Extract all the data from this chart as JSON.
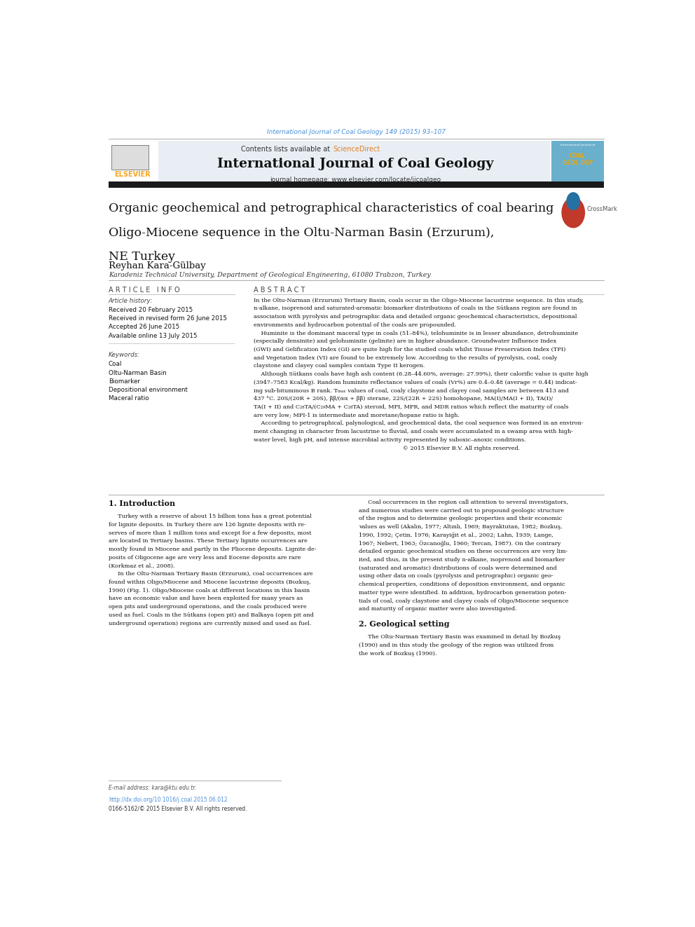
{
  "page_width": 9.92,
  "page_height": 13.23,
  "background_color": "#ffffff",
  "top_citation": "International Journal of Coal Geology 149 (2015) 93–107",
  "top_citation_color": "#4a90d9",
  "header_bg_color": "#e8eef4",
  "journal_title": "International Journal of Coal Geology",
  "journal_homepage": "journal homepage: www.elsevier.com/locate/ijcoalgeo",
  "contents_text": "Contents lists available at ",
  "sciencedirect_text": "ScienceDirect",
  "sciencedirect_color": "#e67e22",
  "elsevier_color": "#f5a623",
  "article_title_line1": "Organic geochemical and petrographical characteristics of coal bearing",
  "article_title_line2": "Oligo-Miocene sequence in the Oltu-Narman Basin (Erzurum),",
  "article_title_line3": "NE Turkey",
  "author": "Reyhan Kara-Gülbay",
  "affiliation": "Karadeniz Technical University, Department of Geological Engineering, 61080 Trabzon, Turkey",
  "article_info_header": "A R T I C L E   I N F O",
  "abstract_header": "A B S T R A C T",
  "article_history_label": "Article history:",
  "received": "Received 20 February 2015",
  "revised": "Received in revised form 26 June 2015",
  "accepted": "Accepted 26 June 2015",
  "available": "Available online 13 July 2015",
  "keywords_label": "Keywords:",
  "keywords": [
    "Coal",
    "Oltu-Narman Basin",
    "Biomarker",
    "Depositional environment",
    "Maceral ratio"
  ],
  "section1_header": "1. Introduction",
  "section2_header": "2. Geological setting",
  "footer_email": "E-mail address: kara@ktu.edu.tr.",
  "footer_doi": "http://dx.doi.org/10.1016/j.coal.2015.06.012",
  "footer_issn": "0166-5162/© 2015 Elsevier B.V. All rights reserved.",
  "thick_bar_color": "#1a1a1a",
  "abstract_lines": [
    "In the Oltu-Narman (Erzurum) Tertiary Basin, coals occur in the Oligo-Miocene lacustrine sequence. In this study,",
    "n-alkane, isoprenoid and saturated-aromatic biomarker distributions of coals in the Sütkans region are found in",
    "association with pyrolysis and petrographic data and detailed organic geochemical characteristics, depositional",
    "environments and hydrocarbon potential of the coals are propounded.",
    "    Huminite is the dominant maceral type in coals (51–84%), telohuminite is in lesser abundance, detrohuminite",
    "(especially densinite) and gelohuminite (gelinite) are in higher abundance. Groundwater Influence Index",
    "(GWI) and Gelification Index (GI) are quite high for the studied coals whilst Tissue Preservation Index (TPI)",
    "and Vegetation Index (VI) are found to be extremely low. According to the results of pyrolysis, coal, coaly",
    "claystone and clayey coal samples contain Type II kerogen.",
    "    Although Sütkans coals have high ash content (6.28–44.60%, average: 27.99%), their calorific value is quite high",
    "(3947–7583 Kcal/kg). Random huminite reflectance values of coals (Vr%) are 0.4–0.48 (average = 0.44) indicat-",
    "ing sub-bituminous B rank. Tₘₐₓ values of coal, coaly claystone and clayey coal samples are between 413 and",
    "437 °C. 20S/(20R + 20S), ββ/(αα + ββ) sterane, 22S/(22R + 22S) homohopane, MA(I)/MA(I + II), TA(I)/",
    "TA(I + II) and C₂₈TA/(C₂₉MA + C₂₈TA) steroid, MPI, MPR, and MDR ratios which reflect the maturity of coals",
    "are very low; MPI-1 is intermediate and moretane/hopane ratio is high.",
    "    According to petrographical, palynological, and geochemical data, the coal sequence was formed in an environ-",
    "ment changing in character from lacustrine to fluvial, and coals were accumulated in a swamp area with high-",
    "water level, high pH, and intense microbial activity represented by suboxic–anoxic conditions.",
    "                                                                                 © 2015 Elsevier B.V. All rights reserved."
  ],
  "intro_col1_lines": [
    "     Turkey with a reserve of about 15 billion tons has a great potential",
    "for lignite deposits. In Turkey there are 126 lignite deposits with re-",
    "serves of more than 1 million tons and except for a few deposits, most",
    "are located in Tertiary basins. These Tertiary lignite occurrences are",
    "mostly found in Miocene and partly in the Pliocene deposits. Lignite de-",
    "posits of Oligocene age are very less and Eocene deposits are rare",
    "(Korkmaz et al., 2008).",
    "     In the Oltu-Narman Tertiary Basin (Erzurum), coal occurrences are",
    "found within Oligo/Miocene and Miocene lacustrine deposits (Bozkuş,",
    "1990) (Fig. 1). Oligo/Miocene coals at different locations in this basin",
    "have an economic value and have been exploited for many years as",
    "open pits and underground operations, and the coals produced were",
    "used as fuel. Coals in the Sütkans (open pit) and Balkaya (open pit and",
    "underground operation) regions are currently mined and used as fuel."
  ],
  "intro_col2_lines": [
    "     Coal occurrences in the region call attention to several investigators,",
    "and numerous studies were carried out to propound geologic structure",
    "of the region and to determine geologic properties and their economic",
    "values as well (Akalın, 1977; Altınlı, 1969; Bayraktutan, 1982; Bozkuş,",
    "1990, 1992; Çetin, 1976; Karayiğit et al., 2002; Lahn, 1939; Lange,",
    "1967; Nebert, 1963; Özcanoğlu, 1960; Tercan, 1987). On the contrary",
    "detailed organic geochemical studies on these occurrences are very lim-",
    "ited, and thus, in the present study n-alkane, isoprenoid and biomarker",
    "(saturated and aromatic) distributions of coals were determined and",
    "using other data on coals (pyrolysis and petrographic) organic geo-",
    "chemical properties, conditions of deposition environment, and organic",
    "matter type were identified. In addition, hydrocarbon generation poten-",
    "tials of coal, coaly claystone and clayey coals of Oligo/Miocene sequence",
    "and maturity of organic matter were also investigated."
  ],
  "geol_lines": [
    "     The Oltu-Narman Tertiary Basin was examined in detail by Bozkuş",
    "(1990) and in this study the geology of the region was utilized from",
    "the work of Bozkuş (1990)."
  ]
}
